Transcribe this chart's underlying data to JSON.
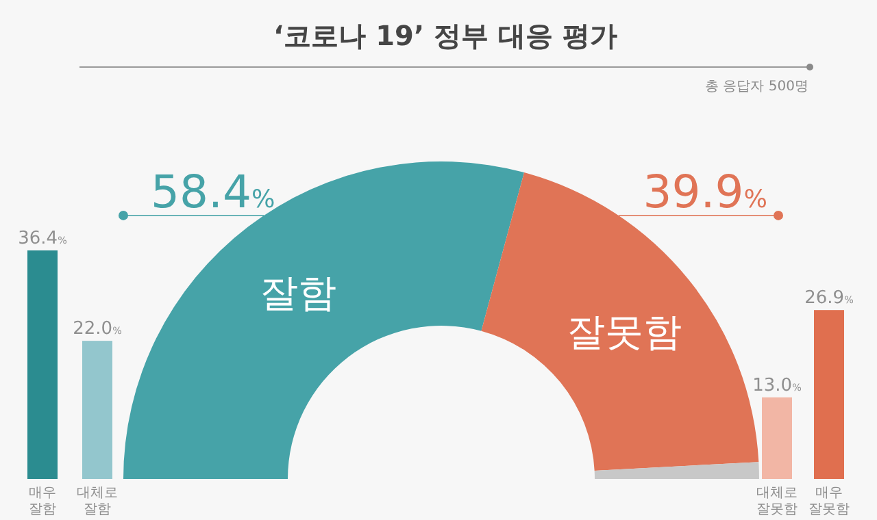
{
  "chart_data": [
    {
      "type": "donut",
      "title": "‘코로나 19’ 정부 대응 평가",
      "subtitle": "총 응답자 500명",
      "categories": [
        "잘함",
        "잘못함",
        null
      ],
      "values": [
        58.4,
        39.9,
        1.7
      ],
      "colors": [
        "#46a3a8",
        "#e07456",
        "#c8c8c8"
      ],
      "value_labels": [
        "58.4%",
        "39.9%",
        null
      ]
    },
    {
      "type": "bar",
      "categories": [
        "매우 잘함",
        "대체로 잘함"
      ],
      "values": [
        36.4,
        22.0
      ],
      "colors": [
        "#2b8c90",
        "#93c6cd"
      ],
      "value_labels": [
        "36.4%",
        "22.0%"
      ]
    },
    {
      "type": "bar",
      "categories": [
        "대체로 잘못함",
        "매우 잘못함"
      ],
      "values": [
        13.0,
        26.9
      ],
      "colors": [
        "#f2b6a5",
        "#e06f4f"
      ],
      "value_labels": [
        "13.0%",
        "26.9%"
      ]
    }
  ]
}
